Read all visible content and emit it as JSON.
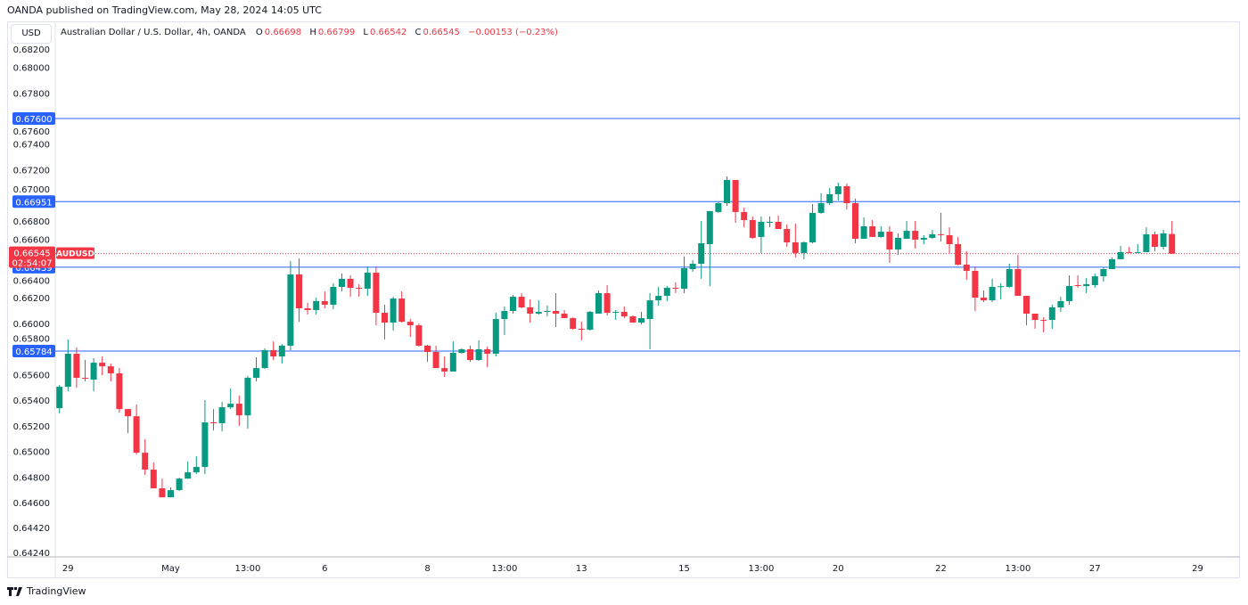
{
  "publisher_line": "OANDA published on TradingView.com, May 28, 2024 14:05 UTC",
  "currency_button": "USD",
  "legend": {
    "title": "Australian Dollar / U.S. Dollar, 4h, OANDA",
    "o_label": "O",
    "o": "0.66698",
    "h_label": "H",
    "h": "0.66799",
    "l_label": "L",
    "l": "0.66542",
    "c_label": "C",
    "c": "0.66545",
    "change": "−0.00153 (−0.23%)"
  },
  "footer_brand": "TradingView",
  "colors": {
    "up": "#089981",
    "down": "#f23645",
    "level": "#2962ff",
    "grid": "#e0e3eb"
  },
  "chart_data": {
    "type": "candlestick",
    "title": "Australian Dollar / U.S. Dollar, 4h, OANDA",
    "ylim": [
      0.6424,
      0.6825
    ],
    "y_ticks": [
      "0.68200",
      "0.68000",
      "0.67800",
      "0.67600",
      "0.67400",
      "0.67200",
      "0.67000",
      "0.66800",
      "0.66600",
      "0.66400",
      "0.66200",
      "0.66000",
      "0.65800",
      "0.65600",
      "0.65400",
      "0.65200",
      "0.65000",
      "0.64800",
      "0.64600",
      "0.64420",
      "0.64240"
    ],
    "x_ticks": [
      {
        "bar": 1,
        "label": "29"
      },
      {
        "bar": 13,
        "label": "May"
      },
      {
        "bar": 22,
        "label": "13:00"
      },
      {
        "bar": 31,
        "label": "6"
      },
      {
        "bar": 43,
        "label": "8"
      },
      {
        "bar": 52,
        "label": "13:00"
      },
      {
        "bar": 61,
        "label": "13"
      },
      {
        "bar": 73,
        "label": "15"
      },
      {
        "bar": 82,
        "label": "13:00"
      },
      {
        "bar": 91,
        "label": "20"
      },
      {
        "bar": 103,
        "label": "22"
      },
      {
        "bar": 112,
        "label": "13:00"
      },
      {
        "bar": 121,
        "label": "27"
      },
      {
        "bar": 133,
        "label": "29"
      }
    ],
    "levels": [
      {
        "price": 0.676,
        "label": "0.67600"
      },
      {
        "price": 0.66951,
        "label": "0.66951"
      },
      {
        "price": 0.66439,
        "label": "0.66439"
      },
      {
        "price": 0.65784,
        "label": "0.65784"
      }
    ],
    "last_price": {
      "price": 0.66545,
      "label": "0.66545",
      "countdown": "02:54:07",
      "symbol": "AUDUSD"
    },
    "ohlc": [
      [
        0.65338,
        0.65519,
        0.65296,
        0.65505
      ],
      [
        0.65505,
        0.65874,
        0.6547,
        0.65763
      ],
      [
        0.65763,
        0.65812,
        0.65498,
        0.65575
      ],
      [
        0.65575,
        0.65714,
        0.65547,
        0.65568
      ],
      [
        0.65561,
        0.65728,
        0.6547,
        0.65693
      ],
      [
        0.65693,
        0.65742,
        0.65596,
        0.65665
      ],
      [
        0.65665,
        0.65686,
        0.65547,
        0.6561
      ],
      [
        0.6561,
        0.65651,
        0.65303,
        0.65331
      ],
      [
        0.65331,
        0.65331,
        0.65143,
        0.65275
      ],
      [
        0.65275,
        0.65366,
        0.64976,
        0.6499
      ],
      [
        0.6499,
        0.65095,
        0.64816,
        0.64858
      ],
      [
        0.64858,
        0.64914,
        0.64712,
        0.64712
      ],
      [
        0.64712,
        0.64788,
        0.64642,
        0.64642
      ],
      [
        0.64642,
        0.64719,
        0.64642,
        0.64698
      ],
      [
        0.64698,
        0.64795,
        0.64691,
        0.64788
      ],
      [
        0.64788,
        0.64921,
        0.64788,
        0.64837
      ],
      [
        0.64837,
        0.64962,
        0.64823,
        0.64879
      ],
      [
        0.64879,
        0.65401,
        0.64823,
        0.65227
      ],
      [
        0.65227,
        0.65331,
        0.65164,
        0.6522
      ],
      [
        0.6522,
        0.65387,
        0.65157,
        0.65345
      ],
      [
        0.65345,
        0.65491,
        0.65331,
        0.65373
      ],
      [
        0.65373,
        0.65436,
        0.65199,
        0.65282
      ],
      [
        0.65282,
        0.65589,
        0.65178,
        0.65575
      ],
      [
        0.65575,
        0.65735,
        0.65547,
        0.65651
      ],
      [
        0.65651,
        0.65805,
        0.65644,
        0.65791
      ],
      [
        0.65791,
        0.6586,
        0.65714,
        0.65742
      ],
      [
        0.65742,
        0.65839,
        0.65686,
        0.65826
      ],
      [
        0.65826,
        0.66487,
        0.65791,
        0.66382
      ],
      [
        0.66382,
        0.66508,
        0.66013,
        0.66118
      ],
      [
        0.66118,
        0.6616,
        0.66069,
        0.66104
      ],
      [
        0.66104,
        0.66201,
        0.66069,
        0.66174
      ],
      [
        0.66174,
        0.6625,
        0.66118,
        0.66146
      ],
      [
        0.66146,
        0.66313,
        0.66111,
        0.66285
      ],
      [
        0.66285,
        0.66389,
        0.6625,
        0.66348
      ],
      [
        0.66348,
        0.66375,
        0.66208,
        0.66278
      ],
      [
        0.66278,
        0.66306,
        0.66208,
        0.66271
      ],
      [
        0.66271,
        0.66445,
        0.66215,
        0.66396
      ],
      [
        0.66396,
        0.66445,
        0.65985,
        0.66083
      ],
      [
        0.66083,
        0.66146,
        0.65874,
        0.66006
      ],
      [
        0.66006,
        0.66208,
        0.65944,
        0.66194
      ],
      [
        0.66194,
        0.6625,
        0.66006,
        0.66013
      ],
      [
        0.66013,
        0.66034,
        0.65895,
        0.65985
      ],
      [
        0.65985,
        0.65999,
        0.65819,
        0.65826
      ],
      [
        0.65826,
        0.65833,
        0.657,
        0.65777
      ],
      [
        0.65777,
        0.65826,
        0.65651,
        0.65651
      ],
      [
        0.65651,
        0.65742,
        0.65582,
        0.65624
      ],
      [
        0.65624,
        0.6586,
        0.65624,
        0.6577
      ],
      [
        0.6577,
        0.65805,
        0.65763,
        0.65798
      ],
      [
        0.65798,
        0.65826,
        0.657,
        0.65714
      ],
      [
        0.65714,
        0.65867,
        0.65707,
        0.65798
      ],
      [
        0.65798,
        0.65819,
        0.65658,
        0.65763
      ],
      [
        0.65763,
        0.66083,
        0.65742,
        0.66034
      ],
      [
        0.66034,
        0.66132,
        0.65909,
        0.66097
      ],
      [
        0.66097,
        0.66222,
        0.66076,
        0.66208
      ],
      [
        0.66208,
        0.66236,
        0.66118,
        0.66125
      ],
      [
        0.66125,
        0.66187,
        0.66006,
        0.66076
      ],
      [
        0.66076,
        0.6618,
        0.66069,
        0.6609
      ],
      [
        0.6609,
        0.66139,
        0.66055,
        0.66097
      ],
      [
        0.66097,
        0.66236,
        0.65971,
        0.66076
      ],
      [
        0.66076,
        0.66104,
        0.66041,
        0.66041
      ],
      [
        0.66041,
        0.66048,
        0.65951,
        0.65958
      ],
      [
        0.65958,
        0.66013,
        0.65867,
        0.65951
      ],
      [
        0.65951,
        0.66097,
        0.65944,
        0.6609
      ],
      [
        0.66076,
        0.66257,
        0.66076,
        0.66236
      ],
      [
        0.66236,
        0.66299,
        0.66062,
        0.66083
      ],
      [
        0.66083,
        0.66104,
        0.66027,
        0.6609
      ],
      [
        0.6609,
        0.66132,
        0.66041,
        0.66055
      ],
      [
        0.66055,
        0.66062,
        0.66006,
        0.66006
      ],
      [
        0.66006,
        0.6609,
        0.65992,
        0.66041
      ],
      [
        0.66034,
        0.66236,
        0.65798,
        0.6618
      ],
      [
        0.6618,
        0.66285,
        0.66139,
        0.66215
      ],
      [
        0.66215,
        0.66292,
        0.66174,
        0.66278
      ],
      [
        0.66278,
        0.6632,
        0.66236,
        0.66271
      ],
      [
        0.66271,
        0.66522,
        0.66236,
        0.66431
      ],
      [
        0.66424,
        0.66494,
        0.66403,
        0.66466
      ],
      [
        0.66466,
        0.668,
        0.66348,
        0.66626
      ],
      [
        0.66619,
        0.66877,
        0.66292,
        0.66877
      ],
      [
        0.6687,
        0.66953,
        0.66863,
        0.66939
      ],
      [
        0.66939,
        0.67148,
        0.66918,
        0.6712
      ],
      [
        0.6712,
        0.6712,
        0.66786,
        0.6687
      ],
      [
        0.6687,
        0.66904,
        0.66751,
        0.66807
      ],
      [
        0.66807,
        0.66835,
        0.66661,
        0.66668
      ],
      [
        0.66675,
        0.66835,
        0.6655,
        0.66793
      ],
      [
        0.66786,
        0.66835,
        0.66751,
        0.66793
      ],
      [
        0.66793,
        0.66842,
        0.66737,
        0.66737
      ],
      [
        0.66737,
        0.66772,
        0.66598,
        0.66633
      ],
      [
        0.66633,
        0.66779,
        0.66515,
        0.6655
      ],
      [
        0.6655,
        0.6664,
        0.66501,
        0.66633
      ],
      [
        0.66633,
        0.66932,
        0.66626,
        0.66863
      ],
      [
        0.66863,
        0.67016,
        0.66856,
        0.66939
      ],
      [
        0.66939,
        0.67057,
        0.66925,
        0.67009
      ],
      [
        0.67009,
        0.67099,
        0.6696,
        0.67071
      ],
      [
        0.67071,
        0.67092,
        0.6689,
        0.66939
      ],
      [
        0.66939,
        0.66974,
        0.66626,
        0.66661
      ],
      [
        0.66661,
        0.66828,
        0.66661,
        0.66758
      ],
      [
        0.66758,
        0.66807,
        0.66675,
        0.66675
      ],
      [
        0.66675,
        0.66758,
        0.66668,
        0.66716
      ],
      [
        0.66716,
        0.66758,
        0.66473,
        0.66577
      ],
      [
        0.66577,
        0.66702,
        0.66535,
        0.66668
      ],
      [
        0.66661,
        0.668,
        0.66661,
        0.66723
      ],
      [
        0.66723,
        0.668,
        0.66584,
        0.66654
      ],
      [
        0.66654,
        0.66689,
        0.66619,
        0.66668
      ],
      [
        0.66668,
        0.6673,
        0.66661,
        0.66696
      ],
      [
        0.66696,
        0.66863,
        0.6664,
        0.66689
      ],
      [
        0.66689,
        0.66751,
        0.6655,
        0.66619
      ],
      [
        0.66619,
        0.66675,
        0.66452,
        0.66459
      ],
      [
        0.66459,
        0.66564,
        0.66341,
        0.6641
      ],
      [
        0.6641,
        0.66445,
        0.66097,
        0.66201
      ],
      [
        0.66201,
        0.66257,
        0.66167,
        0.6618
      ],
      [
        0.6618,
        0.66348,
        0.66167,
        0.66285
      ],
      [
        0.66285,
        0.66313,
        0.66187,
        0.6629
      ],
      [
        0.66285,
        0.66466,
        0.66278,
        0.66424
      ],
      [
        0.66424,
        0.66536,
        0.66215,
        0.66215
      ],
      [
        0.66215,
        0.66215,
        0.65985,
        0.66076
      ],
      [
        0.66076,
        0.66076,
        0.65958,
        0.66027
      ],
      [
        0.66027,
        0.66048,
        0.6593,
        0.6602
      ],
      [
        0.66027,
        0.66146,
        0.65958,
        0.66125
      ],
      [
        0.66125,
        0.66208,
        0.6609,
        0.66174
      ],
      [
        0.66174,
        0.66375,
        0.66146,
        0.66292
      ],
      [
        0.66299,
        0.66375,
        0.66278,
        0.66292
      ],
      [
        0.66292,
        0.66355,
        0.66236,
        0.66306
      ],
      [
        0.66299,
        0.66389,
        0.66278,
        0.66368
      ],
      [
        0.66368,
        0.66438,
        0.66326,
        0.66424
      ],
      [
        0.66424,
        0.66515,
        0.66424,
        0.66501
      ],
      [
        0.66501,
        0.66605,
        0.66501,
        0.66557
      ],
      [
        0.66557,
        0.66598,
        0.6655,
        0.6655
      ],
      [
        0.6655,
        0.66619,
        0.6655,
        0.66557
      ],
      [
        0.66557,
        0.66751,
        0.66557,
        0.66696
      ],
      [
        0.66696,
        0.66716,
        0.66564,
        0.66598
      ],
      [
        0.66598,
        0.6673,
        0.66577,
        0.66703
      ],
      [
        0.66698,
        0.66799,
        0.66542,
        0.66545
      ]
    ]
  }
}
